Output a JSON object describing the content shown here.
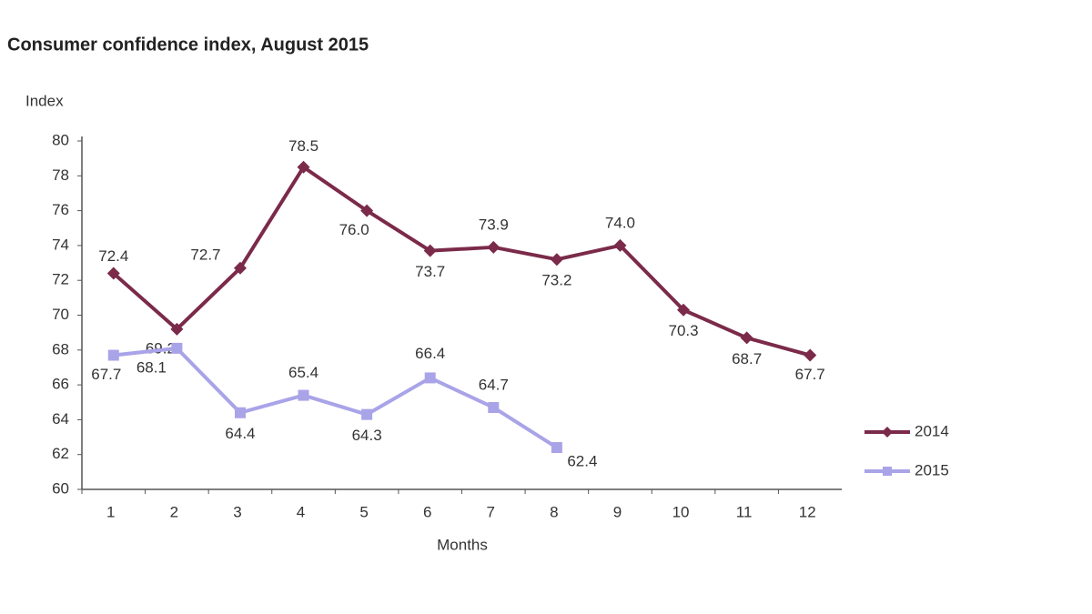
{
  "chart_data": {
    "type": "line",
    "title": "Consumer confidence index, August 2015",
    "y_label": "Index",
    "x_label": "Months",
    "categories": [
      "1",
      "2",
      "3",
      "4",
      "5",
      "6",
      "7",
      "8",
      "9",
      "10",
      "11",
      "12"
    ],
    "series": [
      {
        "name": "2014",
        "color": "#7b2a4a",
        "marker": "diamond",
        "values": [
          72.4,
          69.2,
          72.7,
          78.5,
          76.0,
          73.7,
          73.9,
          73.2,
          74.0,
          70.3,
          68.7,
          67.7
        ],
        "value_labels": [
          "72.4",
          "69.2",
          "72.7",
          "78.5",
          "76.0",
          "73.7",
          "73.9",
          "73.2",
          "74.0",
          "70.3",
          "68.7",
          "67.7"
        ]
      },
      {
        "name": "2015",
        "color": "#a9a3e8",
        "marker": "square",
        "values": [
          67.7,
          68.1,
          64.4,
          65.4,
          64.3,
          66.4,
          64.7,
          62.4,
          null,
          null,
          null,
          null
        ],
        "value_labels": [
          "67.7",
          "68.1",
          "64.4",
          "65.4",
          "64.3",
          "66.4",
          "64.7",
          "62.4",
          null,
          null,
          null,
          null
        ]
      }
    ],
    "ylim": [
      60,
      80
    ],
    "yticks": [
      60,
      62,
      64,
      66,
      68,
      70,
      72,
      74,
      76,
      78,
      80
    ],
    "grid": false,
    "legend": "right"
  }
}
